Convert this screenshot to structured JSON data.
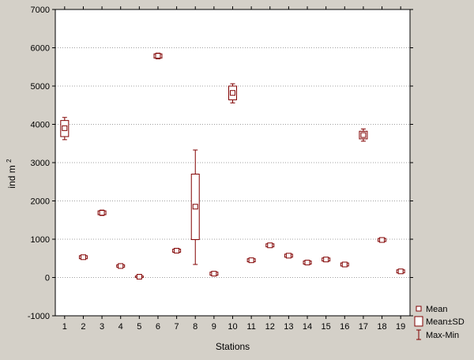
{
  "chart_data": {
    "type": "boxplot",
    "xlabel": "Stations",
    "ylabel": "ind m",
    "ylabel_superscript": "2",
    "ylim": [
      -1000,
      7000
    ],
    "yticks": [
      -1000,
      0,
      1000,
      2000,
      3000,
      4000,
      5000,
      6000,
      7000
    ],
    "grid": true,
    "categories": [
      "1",
      "2",
      "3",
      "4",
      "5",
      "6",
      "7",
      "8",
      "9",
      "10",
      "11",
      "12",
      "13",
      "14",
      "15",
      "16",
      "17",
      "18",
      "19"
    ],
    "series": [
      {
        "category": "1",
        "mean": 3900,
        "sd_low": 3680,
        "sd_high": 4100,
        "min": 3600,
        "max": 4180
      },
      {
        "category": "2",
        "mean": 530,
        "sd_low": 490,
        "sd_high": 570,
        "min": 480,
        "max": 580
      },
      {
        "category": "3",
        "mean": 1690,
        "sd_low": 1640,
        "sd_high": 1740,
        "min": 1620,
        "max": 1760
      },
      {
        "category": "4",
        "mean": 300,
        "sd_low": 270,
        "sd_high": 330,
        "min": 260,
        "max": 340
      },
      {
        "category": "5",
        "mean": 20,
        "sd_low": 0,
        "sd_high": 40,
        "min": -10,
        "max": 50
      },
      {
        "category": "6",
        "mean": 5790,
        "sd_low": 5730,
        "sd_high": 5840,
        "min": 5710,
        "max": 5860
      },
      {
        "category": "7",
        "mean": 700,
        "sd_low": 660,
        "sd_high": 740,
        "min": 640,
        "max": 760
      },
      {
        "category": "8",
        "mean": 1850,
        "sd_low": 990,
        "sd_high": 2700,
        "min": 340,
        "max": 3330
      },
      {
        "category": "9",
        "mean": 100,
        "sd_low": 60,
        "sd_high": 140,
        "min": 50,
        "max": 150
      },
      {
        "category": "10",
        "mean": 4820,
        "sd_low": 4640,
        "sd_high": 5000,
        "min": 4560,
        "max": 5060
      },
      {
        "category": "11",
        "mean": 450,
        "sd_low": 410,
        "sd_high": 490,
        "min": 400,
        "max": 500
      },
      {
        "category": "12",
        "mean": 840,
        "sd_low": 800,
        "sd_high": 880,
        "min": 790,
        "max": 890
      },
      {
        "category": "13",
        "mean": 570,
        "sd_low": 530,
        "sd_high": 610,
        "min": 520,
        "max": 620
      },
      {
        "category": "14",
        "mean": 390,
        "sd_low": 350,
        "sd_high": 430,
        "min": 340,
        "max": 440
      },
      {
        "category": "15",
        "mean": 470,
        "sd_low": 430,
        "sd_high": 510,
        "min": 420,
        "max": 520
      },
      {
        "category": "16",
        "mean": 340,
        "sd_low": 300,
        "sd_high": 380,
        "min": 290,
        "max": 390
      },
      {
        "category": "17",
        "mean": 3720,
        "sd_low": 3620,
        "sd_high": 3820,
        "min": 3560,
        "max": 3880
      },
      {
        "category": "18",
        "mean": 980,
        "sd_low": 940,
        "sd_high": 1020,
        "min": 930,
        "max": 1030
      },
      {
        "category": "19",
        "mean": 160,
        "sd_low": 120,
        "sd_high": 200,
        "min": 110,
        "max": 210
      }
    ],
    "legend": {
      "position": "bottom-right",
      "items": [
        "Mean",
        "Mean±SD",
        "Max-Min"
      ]
    },
    "colors": {
      "background": "#d4d0c8",
      "plot_background": "#ffffff",
      "marker": "#800000",
      "grid": "#a0a0a0"
    }
  }
}
